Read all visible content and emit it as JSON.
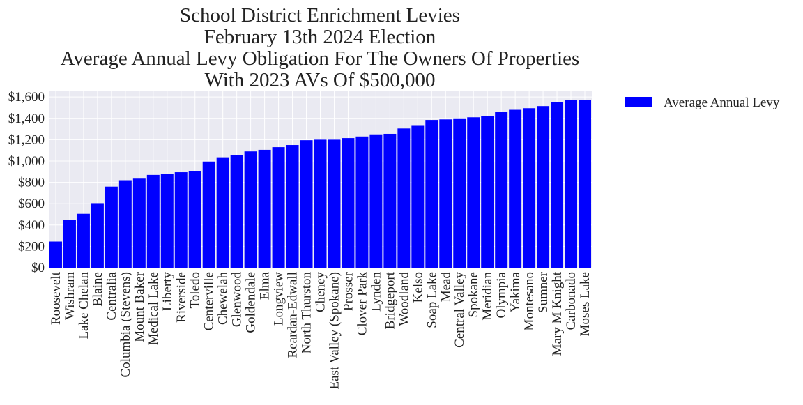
{
  "chart_data": {
    "type": "bar",
    "title_lines": [
      "School District Enrichment Levies",
      "February 13th 2024 Election",
      "Average Annual Levy Obligation For The Owners Of Properties",
      "With 2023 AVs Of $500,000"
    ],
    "xlabel": "",
    "ylabel": "",
    "ylim": [
      0,
      1660
    ],
    "y_ticks": [
      0,
      200,
      400,
      600,
      800,
      1000,
      1200,
      1400,
      1600
    ],
    "y_tick_labels": [
      "$0",
      "$200",
      "$400",
      "$600",
      "$800",
      "$1,000",
      "$1,200",
      "$1,400",
      "$1,600"
    ],
    "grid": true,
    "legend_position": "outside-top-right",
    "categories": [
      "Roosevelt",
      "Wishram",
      "Lake Chelan",
      "Blaine",
      "Centralia",
      "Columbia (Stevens)",
      "Mount Baker",
      "Medical Lake",
      "Liberty",
      "Riverside",
      "Toledo",
      "Centerville",
      "Chewelah",
      "Glenwood",
      "Goldendale",
      "Elma",
      "Longview",
      "Reardan-Edwall",
      "North Thurston",
      "Cheney",
      "East Valley (Spokane)",
      "Prosser",
      "Clover Park",
      "Lynden",
      "Bridgeport",
      "Woodland",
      "Kelso",
      "Soap Lake",
      "Mead",
      "Central Valley",
      "Spokane",
      "Meridian",
      "Olympia",
      "Yakima",
      "Montesano",
      "Sumner",
      "Mary M Knight",
      "Carbonado",
      "Moses Lake"
    ],
    "series": [
      {
        "name": "Average Annual Levy",
        "color": "#0000ff",
        "values": [
          245,
          445,
          505,
          605,
          760,
          820,
          835,
          870,
          880,
          895,
          905,
          995,
          1035,
          1055,
          1090,
          1105,
          1130,
          1150,
          1195,
          1200,
          1200,
          1215,
          1230,
          1250,
          1255,
          1305,
          1330,
          1385,
          1390,
          1400,
          1410,
          1420,
          1460,
          1480,
          1495,
          1515,
          1555,
          1570,
          1575
        ]
      }
    ],
    "colors": {
      "plot_background": "#eaeaf2",
      "grid": "#ffffff",
      "bar": "#0000ff"
    }
  }
}
